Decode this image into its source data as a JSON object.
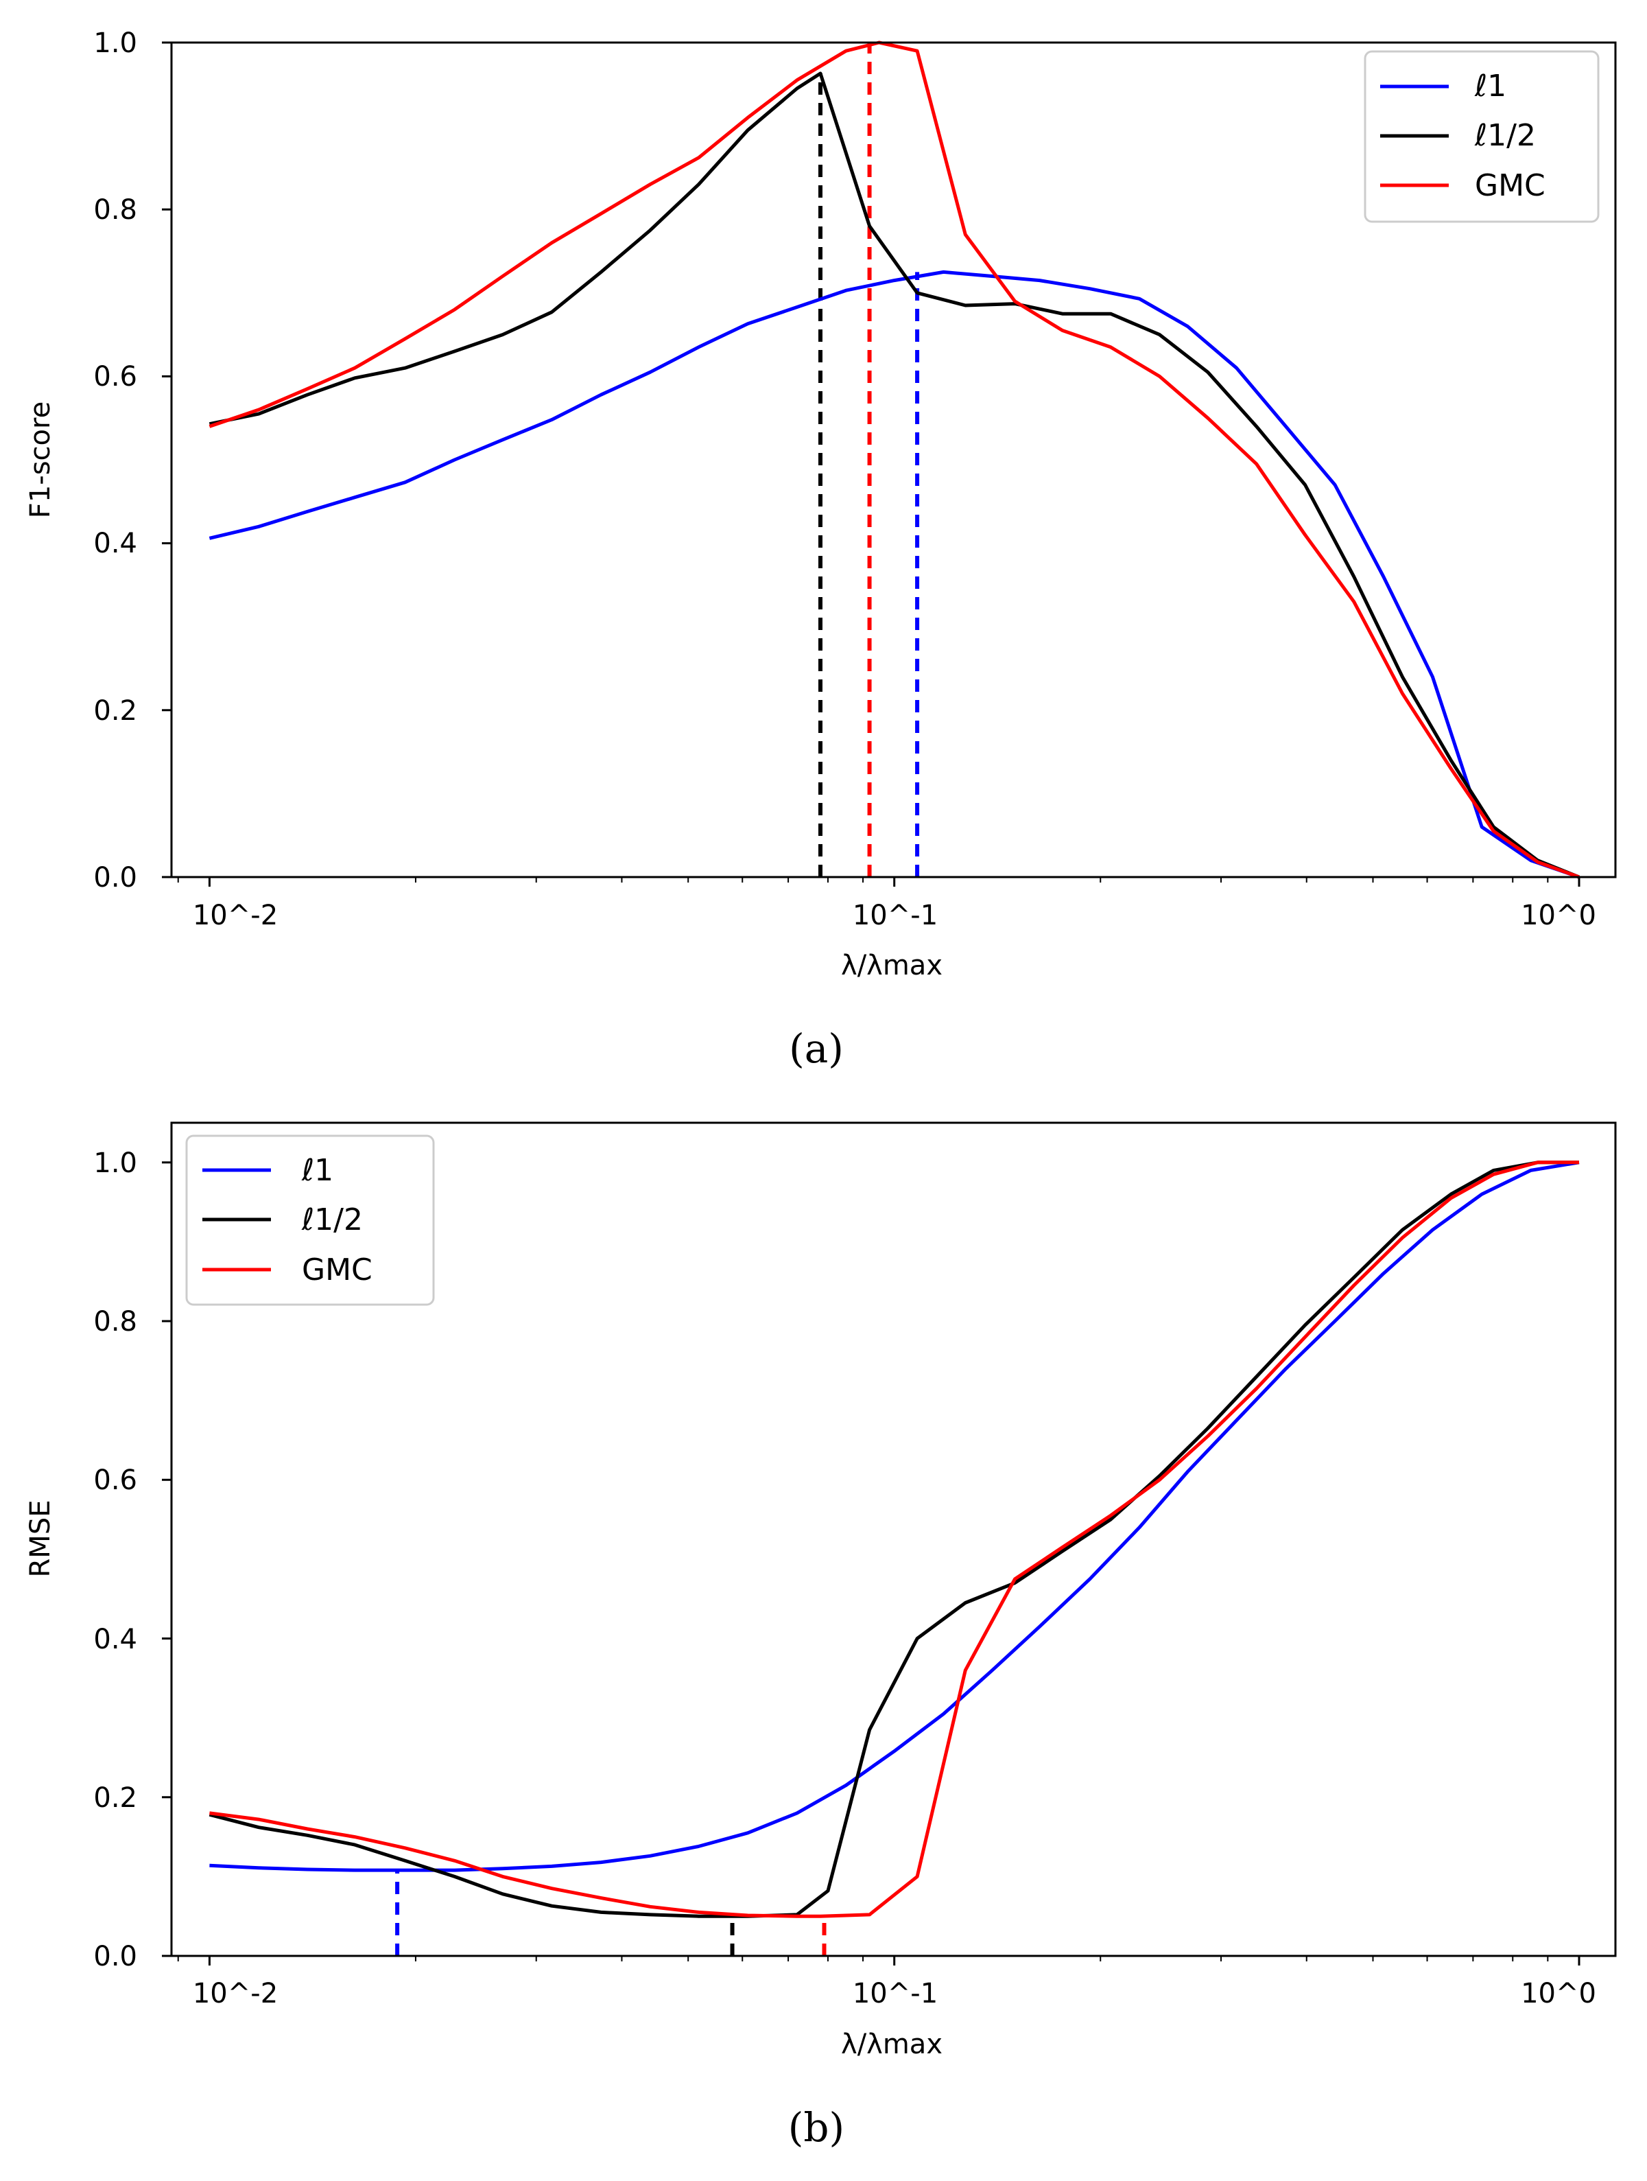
{
  "chart_data": [
    {
      "type": "line",
      "panel_label": "(a)",
      "ylabel": "F1-score",
      "xlabel": "λ/λmax",
      "xscale": "log",
      "xlim": [
        0.0088,
        1.13
      ],
      "ylim": [
        0.0,
        1.0
      ],
      "xticks": [
        "10^-2",
        "10^-1",
        "10^0"
      ],
      "yticks": [
        "0.0",
        "0.2",
        "0.4",
        "0.6",
        "0.8",
        "1.0"
      ],
      "legend_position": "top-right",
      "series": [
        {
          "name": "ℓ1",
          "color": "#0000ff",
          "x": [
            0.01,
            0.0118,
            0.0139,
            0.0163,
            0.0193,
            0.0228,
            0.0268,
            0.0316,
            0.0373,
            0.044,
            0.0518,
            0.0611,
            0.0721,
            0.085,
            0.1,
            0.118,
            0.139,
            0.163,
            0.193,
            0.228,
            0.268,
            0.316,
            0.373,
            0.44,
            0.518,
            0.611,
            0.721,
            0.85,
            1.0
          ],
          "y": [
            0.406,
            0.42,
            0.438,
            0.455,
            0.473,
            0.5,
            0.524,
            0.548,
            0.578,
            0.605,
            0.635,
            0.663,
            0.683,
            0.703,
            0.715,
            0.725,
            0.72,
            0.715,
            0.705,
            0.693,
            0.66,
            0.61,
            0.54,
            0.47,
            0.36,
            0.24,
            0.06,
            0.02,
            0.0
          ]
        },
        {
          "name": "ℓ1/2",
          "color": "#000000",
          "x": [
            0.01,
            0.0118,
            0.0139,
            0.0163,
            0.0193,
            0.0228,
            0.0268,
            0.0316,
            0.0373,
            0.044,
            0.0518,
            0.0611,
            0.0721,
            0.078,
            0.092,
            0.108,
            0.127,
            0.15,
            0.176,
            0.207,
            0.244,
            0.287,
            0.338,
            0.398,
            0.469,
            0.552,
            0.65,
            0.75,
            0.87,
            1.0
          ],
          "y": [
            0.543,
            0.555,
            0.578,
            0.598,
            0.61,
            0.63,
            0.65,
            0.677,
            0.725,
            0.775,
            0.83,
            0.895,
            0.945,
            0.963,
            0.78,
            0.7,
            0.685,
            0.687,
            0.675,
            0.675,
            0.65,
            0.605,
            0.54,
            0.47,
            0.36,
            0.24,
            0.14,
            0.06,
            0.02,
            0.0
          ]
        },
        {
          "name": "GMC",
          "color": "#ff0000",
          "x": [
            0.01,
            0.0118,
            0.0139,
            0.0163,
            0.0193,
            0.0228,
            0.0268,
            0.0316,
            0.0373,
            0.044,
            0.0518,
            0.0611,
            0.0721,
            0.085,
            0.095,
            0.108,
            0.127,
            0.15,
            0.176,
            0.207,
            0.244,
            0.287,
            0.338,
            0.398,
            0.469,
            0.552,
            0.65,
            0.75,
            0.87,
            1.0
          ],
          "y": [
            0.54,
            0.56,
            0.585,
            0.61,
            0.645,
            0.68,
            0.72,
            0.76,
            0.795,
            0.83,
            0.862,
            0.91,
            0.955,
            0.99,
            1.0,
            0.99,
            0.77,
            0.69,
            0.655,
            0.635,
            0.6,
            0.55,
            0.495,
            0.41,
            0.33,
            0.22,
            0.13,
            0.055,
            0.018,
            0.0
          ]
        }
      ],
      "vlines": [
        {
          "x": 0.078,
          "y": 0.963,
          "color": "#000000"
        },
        {
          "x": 0.092,
          "y": 1.0,
          "color": "#ff0000"
        },
        {
          "x": 0.108,
          "y": 0.725,
          "color": "#0000ff"
        }
      ]
    },
    {
      "type": "line",
      "panel_label": "(b)",
      "ylabel": "RMSE",
      "xlabel": "λ/λmax",
      "xscale": "log",
      "xlim": [
        0.0088,
        1.13
      ],
      "ylim": [
        0.0,
        1.05
      ],
      "xticks": [
        "10^-2",
        "10^-1",
        "10^0"
      ],
      "yticks": [
        "0.0",
        "0.2",
        "0.4",
        "0.6",
        "0.8",
        "1.0"
      ],
      "legend_position": "top-left",
      "series": [
        {
          "name": "ℓ1",
          "color": "#0000ff",
          "x": [
            0.01,
            0.0118,
            0.0139,
            0.0163,
            0.0193,
            0.0228,
            0.0268,
            0.0316,
            0.0373,
            0.044,
            0.0518,
            0.0611,
            0.0721,
            0.085,
            0.1,
            0.118,
            0.139,
            0.163,
            0.193,
            0.228,
            0.268,
            0.316,
            0.373,
            0.44,
            0.518,
            0.611,
            0.721,
            0.85,
            1.0
          ],
          "y": [
            0.114,
            0.111,
            0.109,
            0.108,
            0.108,
            0.108,
            0.11,
            0.113,
            0.118,
            0.126,
            0.138,
            0.155,
            0.18,
            0.215,
            0.258,
            0.305,
            0.36,
            0.415,
            0.475,
            0.54,
            0.61,
            0.675,
            0.74,
            0.8,
            0.86,
            0.915,
            0.96,
            0.99,
            1.0
          ]
        },
        {
          "name": "ℓ1/2",
          "color": "#000000",
          "x": [
            0.01,
            0.0118,
            0.0139,
            0.0163,
            0.0193,
            0.0228,
            0.0268,
            0.0316,
            0.0373,
            0.044,
            0.0518,
            0.0611,
            0.0721,
            0.08,
            0.092,
            0.108,
            0.127,
            0.15,
            0.176,
            0.207,
            0.244,
            0.287,
            0.338,
            0.398,
            0.469,
            0.552,
            0.65,
            0.75,
            0.87,
            1.0
          ],
          "y": [
            0.178,
            0.162,
            0.152,
            0.14,
            0.12,
            0.1,
            0.078,
            0.063,
            0.055,
            0.052,
            0.05,
            0.05,
            0.052,
            0.082,
            0.285,
            0.4,
            0.445,
            0.47,
            0.51,
            0.55,
            0.605,
            0.665,
            0.73,
            0.795,
            0.855,
            0.915,
            0.96,
            0.99,
            1.0,
            1.0
          ]
        },
        {
          "name": "GMC",
          "color": "#ff0000",
          "x": [
            0.01,
            0.0118,
            0.0139,
            0.0163,
            0.0193,
            0.0228,
            0.0268,
            0.0316,
            0.0373,
            0.044,
            0.0518,
            0.0611,
            0.0721,
            0.078,
            0.092,
            0.108,
            0.127,
            0.15,
            0.176,
            0.207,
            0.244,
            0.287,
            0.338,
            0.398,
            0.469,
            0.552,
            0.65,
            0.75,
            0.87,
            1.0
          ],
          "y": [
            0.18,
            0.172,
            0.16,
            0.15,
            0.136,
            0.12,
            0.1,
            0.085,
            0.073,
            0.062,
            0.055,
            0.051,
            0.05,
            0.05,
            0.052,
            0.1,
            0.36,
            0.475,
            0.515,
            0.555,
            0.6,
            0.655,
            0.715,
            0.78,
            0.845,
            0.905,
            0.955,
            0.985,
            1.0,
            1.0
          ]
        }
      ],
      "vlines": [
        {
          "x": 0.0188,
          "y": 0.108,
          "color": "#0000ff"
        },
        {
          "x": 0.058,
          "y": 0.05,
          "color": "#000000"
        },
        {
          "x": 0.079,
          "y": 0.05,
          "color": "#ff0000"
        }
      ]
    }
  ]
}
